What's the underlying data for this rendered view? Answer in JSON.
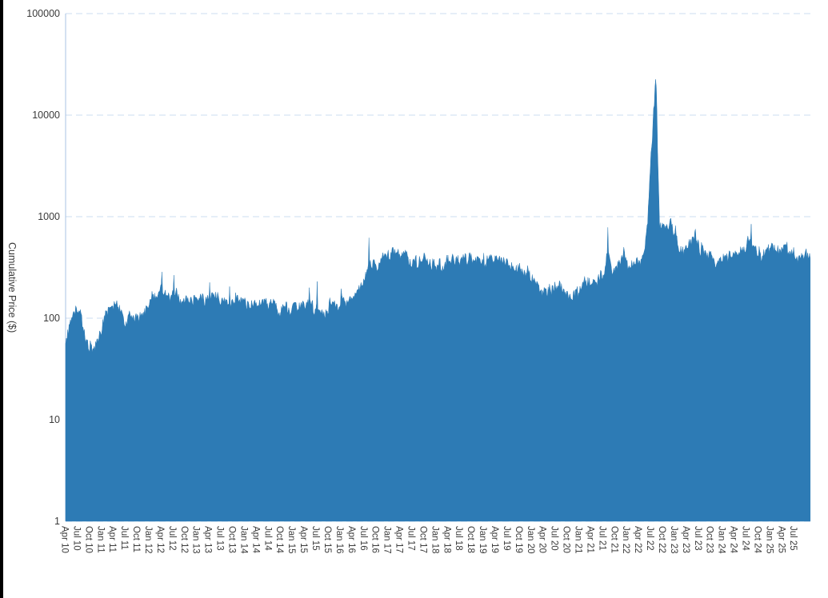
{
  "page": {
    "background": "#ffffff"
  },
  "decorations": {
    "left_edge_bar_color": "#000000"
  },
  "chart_data": {
    "type": "area",
    "title": "",
    "ylabel": "Cumulative Price ($)",
    "xlabel": "",
    "y_scale": "log",
    "ylim": [
      1,
      100000
    ],
    "y_ticks": [
      "1",
      "10",
      "100",
      "1000",
      "10000",
      "100000"
    ],
    "x_ticks": [
      "Apr 10",
      "Jul 10",
      "Oct 10",
      "Jan 11",
      "Apr 11",
      "Jul 11",
      "Oct 11",
      "Jan 12",
      "Apr 12",
      "Jul 12",
      "Oct 12",
      "Jan 13",
      "Apr 13",
      "Jul 13",
      "Oct 13",
      "Jan 14",
      "Apr 14",
      "Jul 14",
      "Oct 14",
      "Jan 15",
      "Apr 15",
      "Jul 15",
      "Oct 15",
      "Jan 16",
      "Apr 16",
      "Jul 16",
      "Oct 16",
      "Jan 17",
      "Apr 17",
      "Jul 17",
      "Oct 17",
      "Jan 18",
      "Apr 18",
      "Jul 18",
      "Oct 18",
      "Jan 19",
      "Apr 19",
      "Jul 19",
      "Oct 19",
      "Jan 20",
      "Apr 20",
      "Jul 20",
      "Oct 20",
      "Jan 21",
      "Apr 21",
      "Jul 21",
      "Oct 21",
      "Jan 22",
      "Apr 22",
      "Jul 22",
      "Oct 22",
      "Jan 23",
      "Apr 23",
      "Jul 23",
      "Oct 23",
      "Jan 24",
      "Apr 24",
      "Jul 24",
      "Oct 24",
      "Jan 25",
      "Apr 25",
      "Jul 25"
    ],
    "x_start": "Apr 2010",
    "x_end": "Sep 2025",
    "x_resolution": "monthly level anchors (noisy daily look)",
    "legend": "none",
    "grid": "horizontal dashed decade gridlines",
    "monthly_levels": [
      55,
      100,
      115,
      125,
      90,
      60,
      55,
      50,
      65,
      85,
      115,
      130,
      140,
      130,
      110,
      90,
      105,
      100,
      95,
      105,
      120,
      150,
      165,
      175,
      185,
      170,
      160,
      180,
      170,
      150,
      145,
      150,
      155,
      160,
      150,
      155,
      165,
      170,
      160,
      150,
      155,
      145,
      150,
      155,
      150,
      140,
      135,
      130,
      135,
      140,
      130,
      135,
      130,
      125,
      120,
      130,
      125,
      130,
      125,
      135,
      140,
      150,
      135,
      125,
      120,
      110,
      130,
      140,
      145,
      150,
      145,
      150,
      160,
      180,
      200,
      250,
      310,
      330,
      300,
      370,
      400,
      420,
      440,
      430,
      420,
      430,
      410,
      380,
      350,
      380,
      395,
      370,
      340,
      320,
      330,
      350,
      360,
      380,
      390,
      360,
      370,
      390,
      395,
      380,
      370,
      370,
      380,
      390,
      395,
      380,
      360,
      340,
      330,
      320,
      310,
      290,
      270,
      250,
      230,
      200,
      175,
      185,
      195,
      205,
      200,
      185,
      160,
      140,
      170,
      200,
      230,
      220,
      230,
      240,
      250,
      260,
      450,
      280,
      310,
      350,
      430,
      340,
      330,
      350,
      380,
      450,
      900,
      5000,
      21000,
      800,
      820,
      780,
      820,
      600,
      435,
      480,
      500,
      550,
      650,
      500,
      440,
      430,
      420,
      300,
      400,
      410,
      420,
      430,
      450,
      470,
      490,
      520,
      600,
      480,
      440,
      430,
      450,
      470,
      480,
      460,
      500,
      470,
      440,
      430,
      420,
      420,
      420,
      415
    ],
    "spike_points": [
      [
        24,
        285
      ],
      [
        27,
        265
      ],
      [
        36,
        225
      ],
      [
        41,
        205
      ],
      [
        61,
        200
      ],
      [
        63,
        230
      ],
      [
        69,
        195
      ],
      [
        74,
        225
      ],
      [
        76,
        620
      ],
      [
        136,
        785
      ],
      [
        140,
        500
      ],
      [
        148,
        22500
      ],
      [
        150,
        850
      ],
      [
        153,
        815
      ],
      [
        158,
        755
      ],
      [
        172,
        845
      ],
      [
        181,
        565
      ]
    ],
    "peak_value": 22500,
    "peak_when": "mid 2022",
    "colors": {
      "fill": "#2d7bb5",
      "gridline": "#cbdcf2",
      "axis_line": "#a9c3e3",
      "tick_text": "#3a3a3a"
    }
  }
}
